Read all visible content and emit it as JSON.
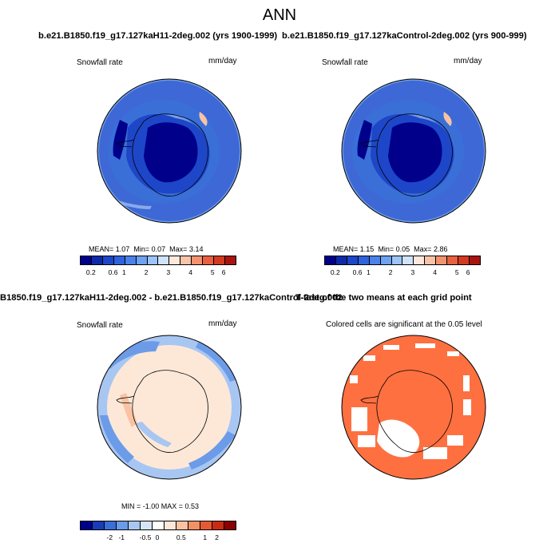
{
  "title": "ANN",
  "panels": [
    {
      "title": "b.e21.B1850.f19_g17.127kaH11-2deg.002 (yrs 1900-1999)",
      "variable": "Snowfall rate",
      "units": "mm/day",
      "stats": {
        "mean_label": "MEAN=",
        "mean": "1.07",
        "min_label": "Min=",
        "min": "0.07",
        "max_label": "Max=",
        "max": "3.14"
      },
      "colorbar": {
        "colors": [
          "#00008b",
          "#0d2aa8",
          "#1e46c8",
          "#2f63dd",
          "#4a82ea",
          "#6ea2f2",
          "#9ec3f7",
          "#cfe3fb",
          "#fce9dc",
          "#f7c4a9",
          "#f2936f",
          "#e8603f",
          "#d33a22",
          "#a81510"
        ],
        "labels": [
          "0.2",
          "0.6",
          "1",
          "2",
          "3",
          "4",
          "5",
          "6"
        ]
      }
    },
    {
      "title": "b.e21.B1850.f19_g17.127kaControl-2deg.002 (yrs 900-999)",
      "variable": "Snowfall rate",
      "units": "mm/day",
      "stats": {
        "mean_label": "MEAN=",
        "mean": "1.15",
        "min_label": "Min=",
        "min": "0.05",
        "max_label": "Max=",
        "max": "2.86"
      },
      "colorbar": {
        "colors": [
          "#00008b",
          "#0d2aa8",
          "#1e46c8",
          "#2f63dd",
          "#4a82ea",
          "#6ea2f2",
          "#9ec3f7",
          "#cfe3fb",
          "#fce9dc",
          "#f7c4a9",
          "#f2936f",
          "#e8603f",
          "#d33a22",
          "#a81510"
        ],
        "labels": [
          "0.2",
          "0.6",
          "1",
          "2",
          "3",
          "4",
          "5",
          "6"
        ]
      }
    },
    {
      "title": "B1850.f19_g17.127kaH11-2deg.002 - b.e21.B1850.f19_g17.127kaControl-2deg.002",
      "variable": "Snowfall rate",
      "units": "mm/day",
      "stats_text": "MIN = -1.00 MAX =  0.53",
      "colorbar": {
        "colors": [
          "#00008b",
          "#1a3cb8",
          "#3a6fd8",
          "#6c9be8",
          "#a8c6f2",
          "#d6e6f8",
          "#ffffff",
          "#fde8d8",
          "#f9c3a3",
          "#f29066",
          "#e55a33",
          "#c92c14",
          "#8b0000"
        ],
        "labels": [
          "-2",
          "-1",
          "-0.5",
          "0",
          "0.5",
          "1",
          "2"
        ]
      }
    },
    {
      "title": "T-test of the two means at each grid point",
      "subtitle": "Colored cells are significant at the 0.05 level"
    }
  ],
  "map_colors": {
    "deep": "#00008b",
    "dark": "#1e46c8",
    "mid": "#3a6fd8",
    "light": "#6c9be8",
    "pale": "#a8c6f2",
    "diff_pos": "#fde8d8",
    "diff_pos2": "#f9c3a3",
    "ttest": "#ff7040"
  }
}
